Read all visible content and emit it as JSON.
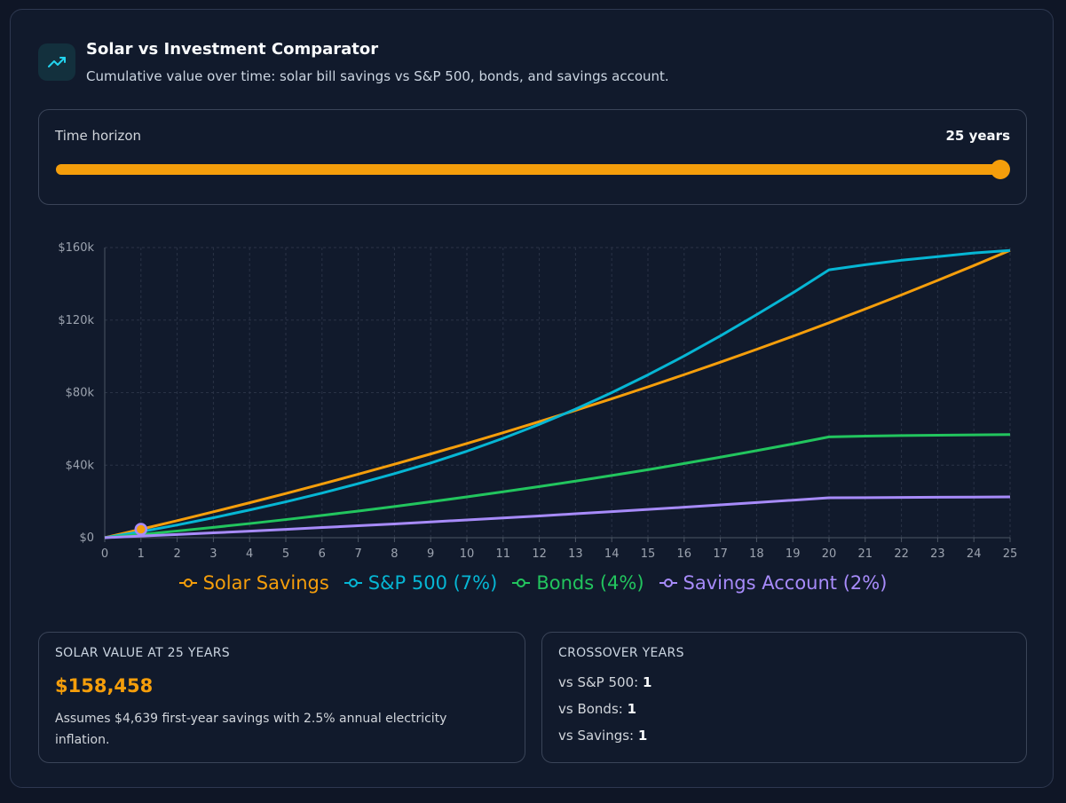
{
  "header": {
    "icon": "trending-up-icon",
    "title": "Solar vs Investment Comparator",
    "subtitle": "Cumulative value over time: solar bill savings vs S&P 500, bonds, and savings account."
  },
  "slider": {
    "label": "Time horizon",
    "value_text": "25 years",
    "value": 25,
    "min": 1,
    "max": 25
  },
  "colors": {
    "solar": "#f59e0b",
    "sp500": "#06b6d4",
    "bonds": "#22c55e",
    "savings": "#a78bfa"
  },
  "chart_data": {
    "type": "line",
    "x": [
      0,
      1,
      2,
      3,
      4,
      5,
      6,
      7,
      8,
      9,
      10,
      11,
      12,
      13,
      14,
      15,
      16,
      17,
      18,
      19,
      20,
      21,
      22,
      23,
      24,
      25
    ],
    "ylim": [
      0,
      160000
    ],
    "yticks": [
      0,
      40000,
      80000,
      120000,
      160000
    ],
    "ytick_labels": [
      "$0",
      "$40k",
      "$80k",
      "$120k",
      "$160k"
    ],
    "grid": true,
    "legend_position": "bottom",
    "active_point": {
      "x": 1,
      "y": 4639
    },
    "series": [
      {
        "name": "Solar Savings",
        "color": "#f59e0b",
        "values": [
          0,
          4639,
          9394,
          14267,
          19263,
          24383,
          29631,
          35011,
          40525,
          46177,
          51970,
          57908,
          63995,
          70234,
          76629,
          83184,
          89902,
          96789,
          103848,
          111083,
          118500,
          126101,
          133893,
          141880,
          150066,
          158458
        ]
      },
      {
        "name": "S&P 500 (7%)",
        "color": "#06b6d4",
        "values": [
          0,
          3300,
          7000,
          11000,
          15300,
          19800,
          24600,
          29800,
          35300,
          41200,
          47700,
          54800,
          62500,
          70900,
          80000,
          89800,
          100200,
          111300,
          123000,
          135000,
          147700,
          150500,
          153000,
          155000,
          157000,
          158400
        ]
      },
      {
        "name": "Bonds (4%)",
        "color": "#22c55e",
        "values": [
          0,
          1800,
          3700,
          5700,
          7800,
          10000,
          12300,
          14700,
          17200,
          19800,
          22500,
          25300,
          28200,
          31200,
          34300,
          37500,
          40900,
          44400,
          48000,
          51700,
          55600,
          56000,
          56300,
          56500,
          56700,
          56900
        ]
      },
      {
        "name": "Savings Account (2%)",
        "color": "#a78bfa",
        "values": [
          0,
          900,
          1800,
          2700,
          3600,
          4600,
          5600,
          6600,
          7600,
          8700,
          9800,
          10900,
          12000,
          13200,
          14400,
          15600,
          16800,
          18100,
          19400,
          20700,
          22000,
          22100,
          22200,
          22300,
          22400,
          22500
        ]
      }
    ]
  },
  "legend": [
    {
      "label": "Solar Savings",
      "color": "#f59e0b"
    },
    {
      "label": "S&P 500 (7%)",
      "color": "#06b6d4"
    },
    {
      "label": "Bonds (4%)",
      "color": "#22c55e"
    },
    {
      "label": "Savings Account (2%)",
      "color": "#a78bfa"
    }
  ],
  "summary": {
    "heading": "SOLAR VALUE AT 25 YEARS",
    "value": "$158,458",
    "note": "Assumes $4,639 first-year savings with 2.5% annual electricity inflation."
  },
  "crossover": {
    "heading": "CROSSOVER YEARS",
    "rows": [
      {
        "label": "vs S&P 500:",
        "value": "1"
      },
      {
        "label": "vs Bonds:",
        "value": "1"
      },
      {
        "label": "vs Savings:",
        "value": "1"
      }
    ]
  }
}
